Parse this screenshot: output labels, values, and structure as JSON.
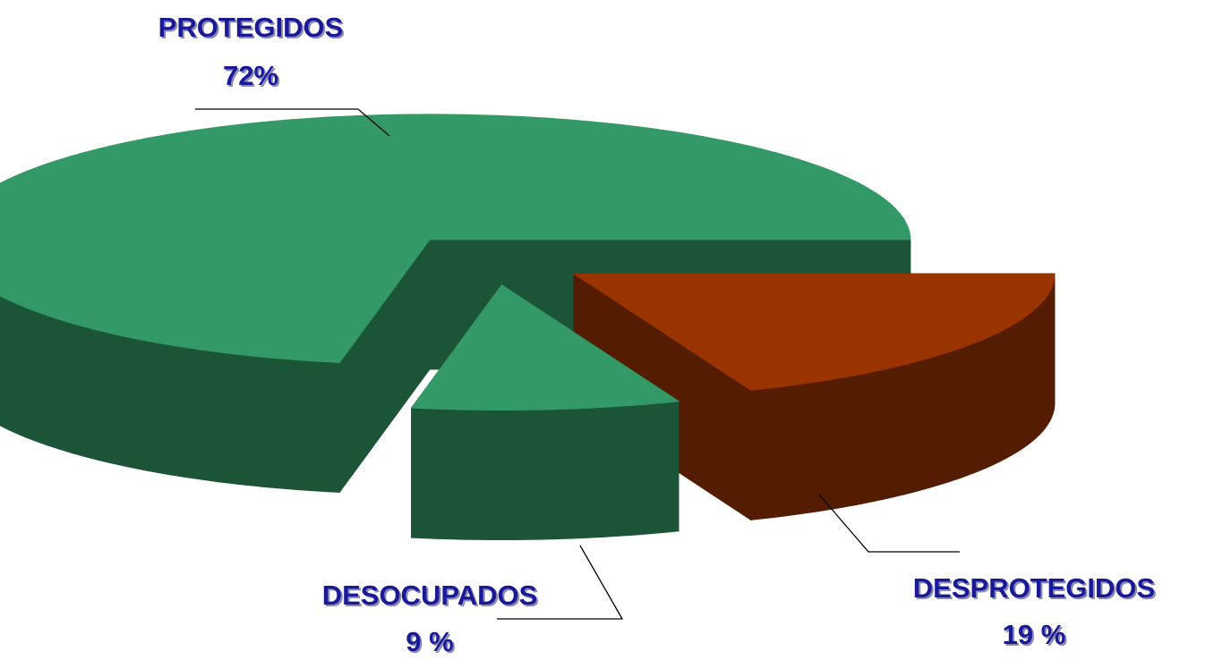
{
  "chart_data": {
    "type": "pie3d",
    "categories": [
      "DESPROTEGIDOS",
      "DESOCUPADOS",
      "PROTEGIDOS"
    ],
    "values": [
      19,
      9,
      72
    ],
    "value_labels": [
      "19 %",
      "9 %",
      "72%"
    ],
    "colors": [
      "#993300",
      "#339966",
      "#339966"
    ]
  }
}
